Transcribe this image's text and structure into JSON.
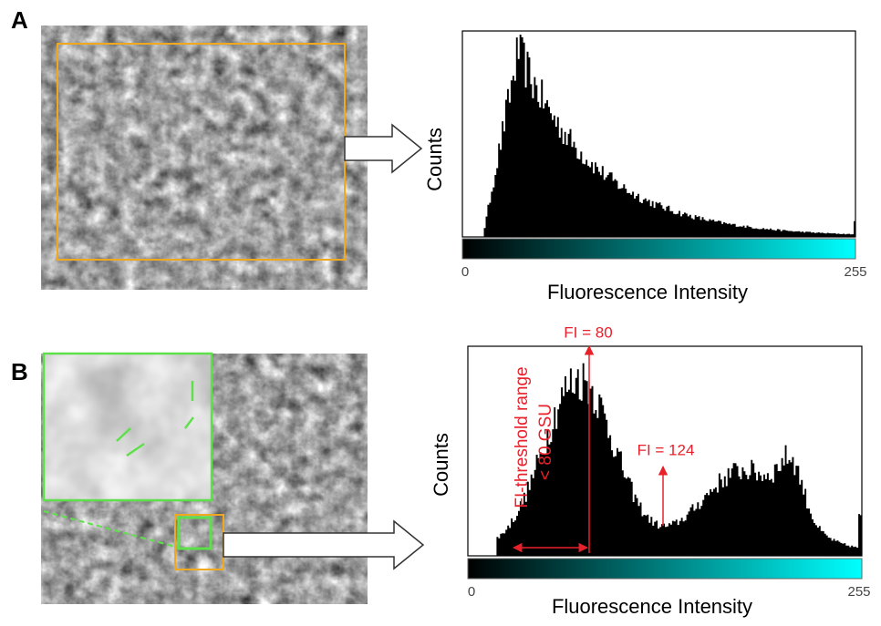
{
  "panels": [
    {
      "label": "A",
      "y_axis_label": "Counts",
      "x_axis_label": "Fluorescence Intensity",
      "x_min": 0,
      "x_max": 255
    },
    {
      "label": "B",
      "y_axis_label": "Counts",
      "x_axis_label": "Fluorescence Intensity",
      "x_min": 0,
      "x_max": 255,
      "annotations": {
        "peak": "FI = 80",
        "second_peak": "FI = 124",
        "range_line1": "FI-threshold range",
        "range_line2": "< 80 GSU"
      }
    }
  ]
}
